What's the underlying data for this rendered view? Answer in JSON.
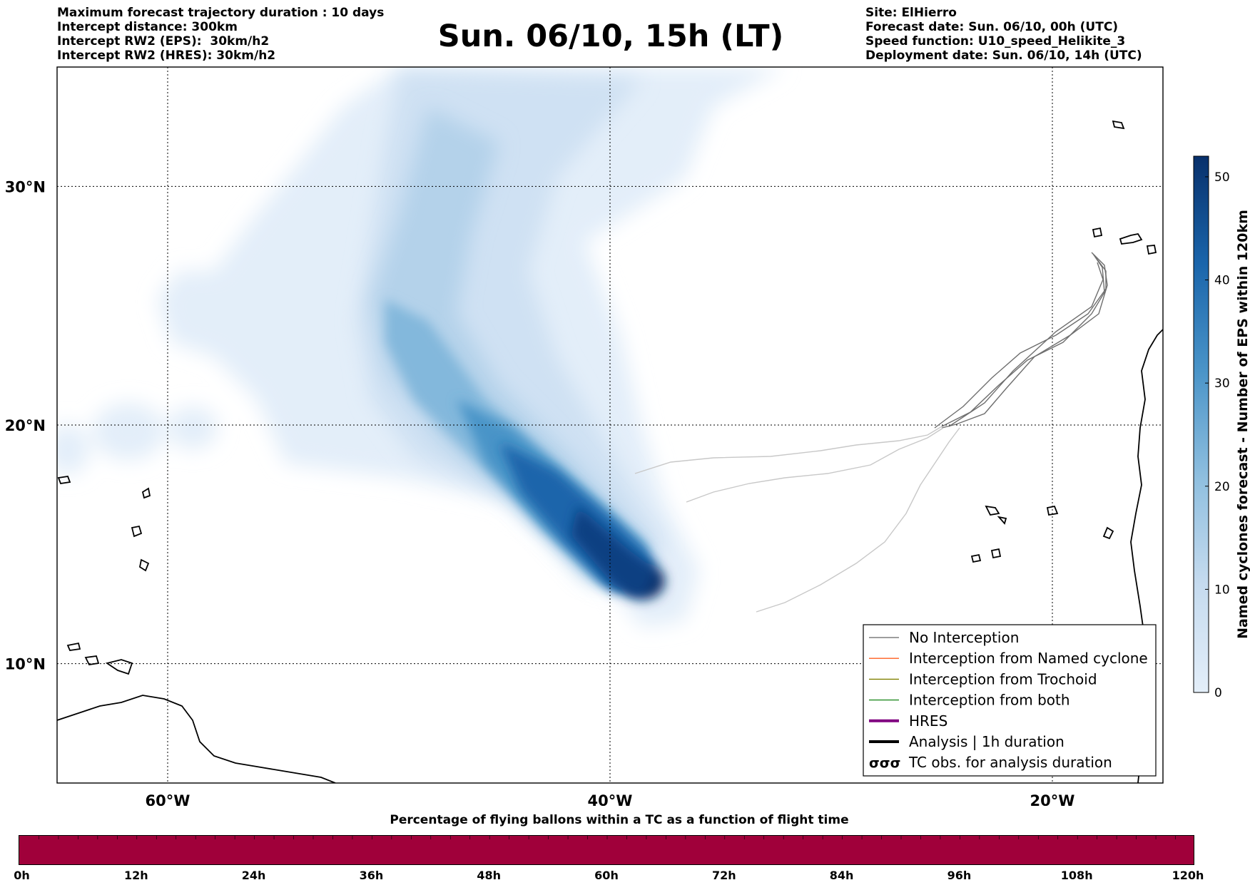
{
  "header_left": [
    "Maximum forecast trajectory duration : 10 days",
    "Intercept distance: 300km",
    "Intercept RW2 (EPS):  30km/h2",
    "Intercept RW2 (HRES): 30km/h2"
  ],
  "header_right": [
    "Site: ElHierro",
    "Forecast date: Sun. 06/10, 00h (UTC)",
    "Speed function: U10_speed_Helikite_3",
    "Deployment date: Sun. 06/10, 14h (UTC)"
  ],
  "title": "Sun. 06/10, 15h (LT)",
  "map": {
    "lon_range": [
      -65,
      -15
    ],
    "lat_range": [
      5,
      35
    ],
    "lon_ticks": [
      {
        "value": -60,
        "label": "60°W"
      },
      {
        "value": -40,
        "label": "40°W"
      },
      {
        "value": -20,
        "label": "20°W"
      }
    ],
    "lat_ticks": [
      {
        "value": 10,
        "label": "10°N"
      },
      {
        "value": 20,
        "label": "20°N"
      },
      {
        "value": 30,
        "label": "30°N"
      }
    ],
    "grid": "dotted",
    "density_center": {
      "lon": -38.2,
      "lat": 13.4
    }
  },
  "colorbar": {
    "label": "Named cyclones forecast - Number of EPS within 120km",
    "min": 0,
    "max": 52,
    "ticks": [
      {
        "value": 0,
        "label": "0"
      },
      {
        "value": 10,
        "label": "10"
      },
      {
        "value": 20,
        "label": "20"
      },
      {
        "value": 30,
        "label": "30"
      },
      {
        "value": 40,
        "label": "40"
      },
      {
        "value": 50,
        "label": "50"
      }
    ],
    "color_low": "#e3eef9",
    "color_high": "#08306b"
  },
  "legend": {
    "position": "lower-right",
    "items": [
      {
        "label": "No Interception",
        "color": "#7f7f7f",
        "style": "thin"
      },
      {
        "label": "Interception from Named cyclone",
        "color": "#ff5f1f",
        "style": "thin"
      },
      {
        "label": "Interception from Trochoid",
        "color": "#808000",
        "style": "thin"
      },
      {
        "label": "Interception from both",
        "color": "#228b22",
        "style": "thin"
      },
      {
        "label": "HRES",
        "color": "#800080",
        "style": "thick"
      },
      {
        "label": "Analysis | 1h duration",
        "color": "#000000",
        "style": "thick"
      },
      {
        "label": "TC obs. for analysis duration",
        "color": "#000000",
        "style": "symbol"
      }
    ]
  },
  "bottom": {
    "title": "Percentage of flying ballons within a TC as a function of flight time",
    "fill_fraction": 1.0,
    "fill_color": "#a0003a",
    "ticks": [
      "0h",
      "12h",
      "24h",
      "36h",
      "48h",
      "60h",
      "72h",
      "84h",
      "96h",
      "108h",
      "120h"
    ]
  }
}
